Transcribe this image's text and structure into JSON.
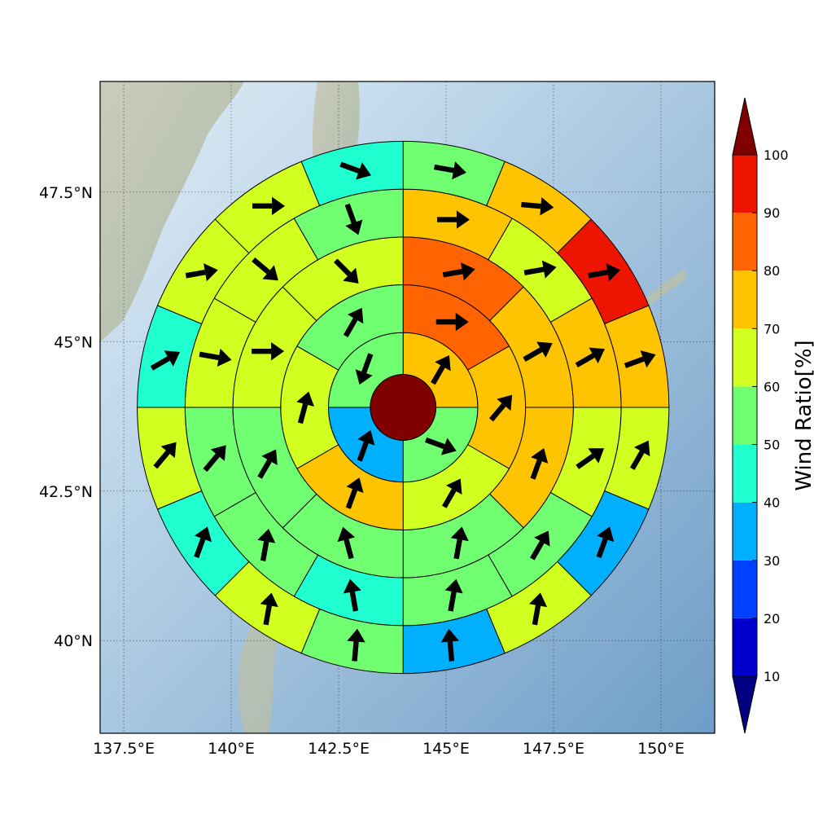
{
  "chart_data": {
    "type": "heatmap",
    "subtype": "polar-sector-wind-map",
    "x_axis": {
      "ticks": [
        "137.5°E",
        "140°E",
        "142.5°E",
        "145°E",
        "147.5°E",
        "150°E"
      ],
      "tick_values": [
        137.5,
        140,
        142.5,
        145,
        147.5,
        150
      ],
      "range": [
        136.95,
        151.25
      ]
    },
    "y_axis": {
      "ticks": [
        "40°N",
        "42.5°N",
        "45°N",
        "47.5°N"
      ],
      "tick_values": [
        40,
        42.5,
        45,
        47.5
      ],
      "range": [
        38.45,
        49.35
      ]
    },
    "grid": true,
    "center": {
      "lon": 144.0,
      "lat": 43.9,
      "value": 100
    },
    "ring_radii_deg_lat": [
      0.55,
      1.25,
      2.05,
      2.85,
      3.65,
      4.45
    ],
    "rings": [
      {
        "sectors": 4,
        "start_angle": 90,
        "values": [
          70,
          50,
          35,
          50
        ],
        "wind_dir": [
          30,
          110,
          20,
          200
        ]
      },
      {
        "sectors": 6,
        "start_angle": 90,
        "values": [
          80,
          70,
          60,
          70,
          60,
          50
        ],
        "wind_dir": [
          90,
          40,
          30,
          20,
          15,
          30
        ]
      },
      {
        "sectors": 8,
        "start_angle": 90,
        "values": [
          80,
          75,
          70,
          55,
          50,
          55,
          60,
          60
        ],
        "wind_dir": [
          80,
          60,
          20,
          10,
          345,
          30,
          90,
          135
        ]
      },
      {
        "sectors": 12,
        "start_angle": 90,
        "values": [
          70,
          65,
          75,
          60,
          50,
          55,
          45,
          55,
          50,
          60,
          60,
          50
        ],
        "wind_dir": [
          90,
          80,
          60,
          55,
          30,
          10,
          350,
          10,
          40,
          100,
          130,
          160
        ]
      },
      {
        "sectors": 16,
        "start_angle": 90,
        "values": [
          55,
          70,
          90,
          75,
          60,
          35,
          60,
          35,
          50,
          65,
          40,
          60,
          45,
          60,
          60,
          45
        ],
        "wind_dir": [
          100,
          95,
          80,
          70,
          30,
          20,
          10,
          355,
          5,
          10,
          20,
          40,
          60,
          80,
          90,
          110
        ]
      },
      {
        "sectors": 20,
        "start_angle": 90,
        "values": [
          65,
          50,
          55,
          60,
          65,
          55,
          45,
          35,
          35,
          40,
          40,
          35,
          35,
          40,
          45,
          45,
          45,
          55,
          35,
          25
        ],
        "wind_dir": [
          80,
          60,
          40,
          30,
          20,
          10,
          10,
          350,
          340,
          315,
          290,
          270,
          260,
          250,
          235,
          220,
          200,
          190,
          175,
          160
        ]
      }
    ],
    "colorbar": {
      "label": "Wind Ratio[%]",
      "ticks": [
        "10",
        "20",
        "30",
        "40",
        "50",
        "60",
        "70",
        "80",
        "90",
        "100"
      ],
      "tick_values": [
        10,
        20,
        30,
        40,
        50,
        60,
        70,
        80,
        90,
        100
      ],
      "range": [
        10,
        100
      ],
      "extend": "both",
      "colors": [
        "#0000cd",
        "#0040ff",
        "#00b0ff",
        "#20ffd0",
        "#70ff70",
        "#d0ff20",
        "#ffc400",
        "#ff6400",
        "#ee1500"
      ],
      "under_color": "#000080",
      "over_color": "#800000"
    }
  }
}
